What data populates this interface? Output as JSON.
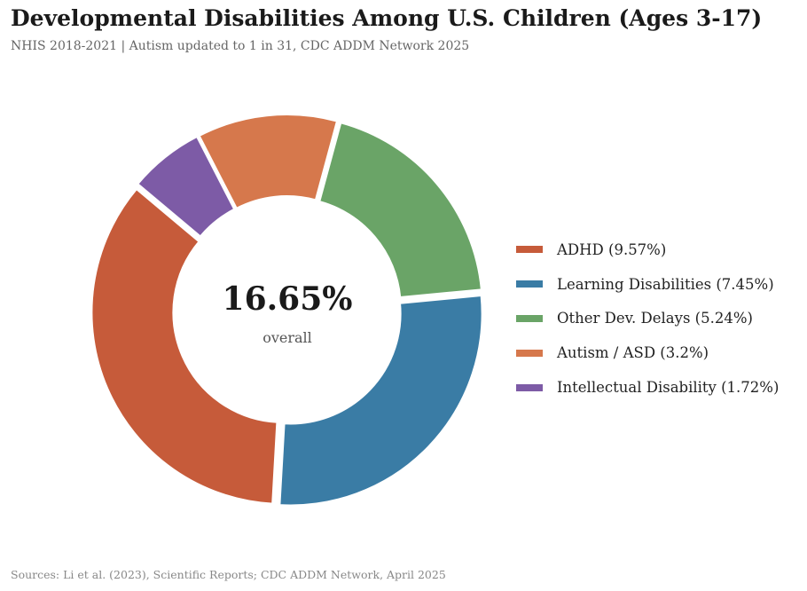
{
  "title": "Developmental Disabilities Among U.S. Children (Ages 3-17)",
  "subtitle": "NHIS 2018-2021  |  Autism updated to 1 in 31, CDC ADDM Network 2025",
  "source": "Sources: Li et al. (2023), Scientific Reports; CDC ADDM Network, April 2025",
  "chart_data": {
    "type": "pie",
    "variant": "donut",
    "center_value": "16.65%",
    "center_label": "overall",
    "categories": [
      "ADHD",
      "Learning Disabilities",
      "Other Dev. Delays",
      "Autism / ASD",
      "Intellectual Disability"
    ],
    "values": [
      9.57,
      7.45,
      5.24,
      3.2,
      1.72
    ],
    "legend_labels": [
      "ADHD (9.57%)",
      "Learning Disabilities (7.45%)",
      "Other Dev. Delays (5.24%)",
      "Autism / ASD (3.2%)",
      "Intellectual Disability (1.72%)"
    ],
    "colors": [
      "#c65b3a",
      "#3a7ca5",
      "#6aa467",
      "#d6784c",
      "#7d5ba6"
    ],
    "start_angle_deg": 140,
    "legend_position": "right"
  }
}
